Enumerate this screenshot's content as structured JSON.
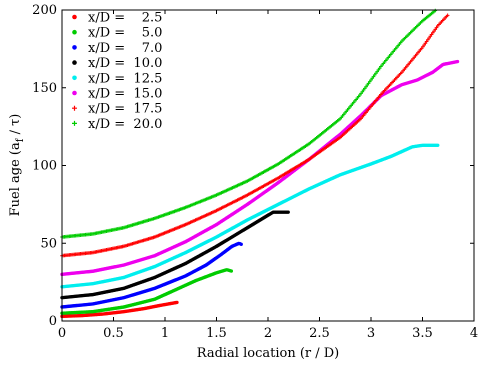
{
  "chart_data": {
    "type": "scatter",
    "title": "",
    "xlabel": "Radial location (r / D)",
    "ylabel": "Fuel age (a_f / τ)",
    "ylabel_parts": {
      "pre": "Fuel age (a",
      "sub": "f",
      "post": " / τ)"
    },
    "xlim": [
      0,
      4
    ],
    "ylim": [
      0,
      200
    ],
    "xticks": [
      0,
      0.5,
      1,
      1.5,
      2,
      2.5,
      3,
      3.5,
      4
    ],
    "xtick_labels": [
      "0",
      "0.5",
      "1",
      "1.5",
      "2",
      "2.5",
      "3",
      "3.5",
      "4"
    ],
    "yticks": [
      0,
      50,
      100,
      150,
      200
    ],
    "ytick_labels": [
      "0",
      "50",
      "100",
      "150",
      "200"
    ],
    "grid": false,
    "legend_position": "top-left",
    "series": [
      {
        "name": "x/D =    2.5",
        "color": "#ff0000",
        "marker": "dot",
        "end_x": 1.12,
        "points": [
          [
            0,
            3
          ],
          [
            0.2,
            3.5
          ],
          [
            0.4,
            4.5
          ],
          [
            0.6,
            6
          ],
          [
            0.8,
            8
          ],
          [
            0.95,
            10
          ],
          [
            1.12,
            12
          ]
        ]
      },
      {
        "name": "x/D =    5.0",
        "color": "#00cc00",
        "marker": "dot",
        "end_x": 1.65,
        "points": [
          [
            0,
            5
          ],
          [
            0.3,
            6
          ],
          [
            0.6,
            9
          ],
          [
            0.9,
            14
          ],
          [
            1.1,
            20
          ],
          [
            1.3,
            26
          ],
          [
            1.5,
            31
          ],
          [
            1.6,
            33
          ],
          [
            1.65,
            32
          ]
        ]
      },
      {
        "name": "x/D =    7.0",
        "color": "#0000ff",
        "marker": "dot",
        "end_x": 1.75,
        "points": [
          [
            0,
            9
          ],
          [
            0.3,
            11
          ],
          [
            0.6,
            15
          ],
          [
            0.9,
            21
          ],
          [
            1.2,
            29
          ],
          [
            1.4,
            36
          ],
          [
            1.55,
            43
          ],
          [
            1.65,
            48
          ],
          [
            1.72,
            50
          ],
          [
            1.75,
            49
          ]
        ]
      },
      {
        "name": "x/D =  10.0",
        "color": "#000000",
        "marker": "dot",
        "end_x": 2.2,
        "points": [
          [
            0,
            15
          ],
          [
            0.3,
            17
          ],
          [
            0.6,
            21
          ],
          [
            0.9,
            28
          ],
          [
            1.2,
            37
          ],
          [
            1.5,
            48
          ],
          [
            1.75,
            58
          ],
          [
            1.95,
            66
          ],
          [
            2.05,
            70
          ],
          [
            2.2,
            70
          ]
        ]
      },
      {
        "name": "x/D =  12.5",
        "color": "#00eeee",
        "marker": "dot",
        "end_x": 3.65,
        "points": [
          [
            0,
            22
          ],
          [
            0.3,
            24
          ],
          [
            0.6,
            28
          ],
          [
            0.9,
            35
          ],
          [
            1.2,
            44
          ],
          [
            1.5,
            54
          ],
          [
            1.8,
            65
          ],
          [
            2.1,
            75
          ],
          [
            2.4,
            85
          ],
          [
            2.7,
            94
          ],
          [
            3.0,
            101
          ],
          [
            3.2,
            106
          ],
          [
            3.4,
            112
          ],
          [
            3.5,
            113
          ],
          [
            3.65,
            113
          ]
        ]
      },
      {
        "name": "x/D =  15.0",
        "color": "#ee00ee",
        "marker": "dot",
        "end_x": 3.85,
        "points": [
          [
            0,
            30
          ],
          [
            0.3,
            32
          ],
          [
            0.6,
            36
          ],
          [
            0.9,
            42
          ],
          [
            1.2,
            51
          ],
          [
            1.5,
            62
          ],
          [
            1.8,
            75
          ],
          [
            2.1,
            89
          ],
          [
            2.4,
            104
          ],
          [
            2.7,
            120
          ],
          [
            2.9,
            132
          ],
          [
            3.1,
            145
          ],
          [
            3.3,
            152
          ],
          [
            3.45,
            155
          ],
          [
            3.6,
            160
          ],
          [
            3.7,
            165
          ],
          [
            3.85,
            167
          ]
        ]
      },
      {
        "name": "x/D =  17.5",
        "color": "#ff0000",
        "marker": "plus",
        "end_x": 3.75,
        "points": [
          [
            0,
            42
          ],
          [
            0.3,
            44
          ],
          [
            0.6,
            48
          ],
          [
            0.9,
            54
          ],
          [
            1.2,
            62
          ],
          [
            1.5,
            71
          ],
          [
            1.8,
            81
          ],
          [
            2.1,
            92
          ],
          [
            2.4,
            104
          ],
          [
            2.7,
            118
          ],
          [
            2.9,
            130
          ],
          [
            3.1,
            146
          ],
          [
            3.3,
            160
          ],
          [
            3.5,
            176
          ],
          [
            3.65,
            190
          ],
          [
            3.75,
            197
          ]
        ]
      },
      {
        "name": "x/D =  20.0",
        "color": "#00cc00",
        "marker": "plus",
        "end_x": 3.65,
        "points": [
          [
            0,
            54
          ],
          [
            0.3,
            56
          ],
          [
            0.6,
            60
          ],
          [
            0.9,
            66
          ],
          [
            1.2,
            73
          ],
          [
            1.5,
            81
          ],
          [
            1.8,
            90
          ],
          [
            2.1,
            101
          ],
          [
            2.4,
            114
          ],
          [
            2.7,
            130
          ],
          [
            2.9,
            146
          ],
          [
            3.1,
            164
          ],
          [
            3.3,
            180
          ],
          [
            3.5,
            193
          ],
          [
            3.65,
            201
          ]
        ]
      }
    ]
  }
}
